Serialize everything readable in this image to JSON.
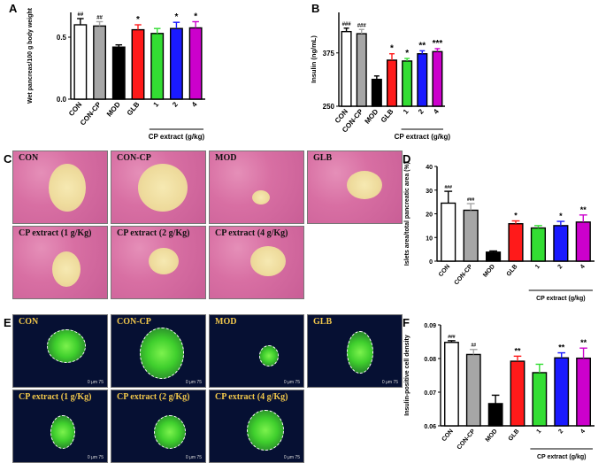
{
  "panels": [
    "A",
    "B",
    "C",
    "D",
    "E",
    "F"
  ],
  "chart_data": [
    {
      "id": "A",
      "type": "bar",
      "categories": [
        "CON",
        "CON-CP",
        "MOD",
        "GLB",
        "1",
        "2",
        "4"
      ],
      "values": [
        0.6,
        0.59,
        0.42,
        0.56,
        0.53,
        0.57,
        0.575
      ],
      "errors": [
        0.05,
        0.035,
        0.018,
        0.04,
        0.04,
        0.05,
        0.05
      ],
      "annotations": [
        "##",
        "##",
        "",
        "*",
        "",
        "*",
        "*"
      ],
      "colors": [
        "#ffffff",
        "#a6a6a6",
        "#000000",
        "#ff1a1a",
        "#33dd33",
        "#1a1aff",
        "#cc00cc"
      ],
      "ylabel": "Wet pancreas/100 g body weight",
      "ylim": [
        0.0,
        0.7
      ],
      "yticks": [
        "0.0",
        "0.5"
      ],
      "ytick_values": [
        0.0,
        0.5
      ],
      "group_label": "CP extract (g/kg)"
    },
    {
      "id": "B",
      "type": "bar",
      "categories": [
        "CON",
        "CON-CP",
        "MOD",
        "GLB",
        "1",
        "2",
        "4"
      ],
      "values": [
        425,
        420,
        313,
        358,
        356,
        373,
        378
      ],
      "errors": [
        8,
        10,
        8,
        15,
        6,
        7,
        7
      ],
      "annotations": [
        "###",
        "###",
        "",
        "*",
        "*",
        "**",
        "***"
      ],
      "colors": [
        "#ffffff",
        "#a6a6a6",
        "#000000",
        "#ff1a1a",
        "#33dd33",
        "#1a1aff",
        "#cc00cc"
      ],
      "ylabel": "Insulin (ng/mL)",
      "ylim": [
        250,
        470
      ],
      "yticks": [
        "250",
        "375"
      ],
      "ytick_values": [
        250,
        375
      ],
      "group_label": "CP extract (g/kg)"
    },
    {
      "id": "D",
      "type": "bar",
      "categories": [
        "CON",
        "CON-CP",
        "MOD",
        "GLB",
        "1",
        "2",
        "4"
      ],
      "values": [
        24.5,
        21.5,
        3.8,
        15.8,
        14.0,
        15.0,
        16.5
      ],
      "errors": [
        5.0,
        2.8,
        0.5,
        1.2,
        1.0,
        1.8,
        3.0
      ],
      "annotations": [
        "###",
        "###",
        "",
        "*",
        "",
        "*",
        "**"
      ],
      "colors": [
        "#ffffff",
        "#a6a6a6",
        "#000000",
        "#ff1a1a",
        "#33dd33",
        "#1a1aff",
        "#cc00cc"
      ],
      "ylabel": "Islets area/total pancreatic area (%)",
      "ylim": [
        0,
        40
      ],
      "yticks": [
        "0",
        "10",
        "20",
        "30",
        "40"
      ],
      "ytick_values": [
        0,
        10,
        20,
        30,
        40
      ],
      "group_label": "CP extract (g/kg)"
    },
    {
      "id": "F",
      "type": "bar",
      "categories": [
        "CON",
        "CON-CP",
        "MOD",
        "GLB",
        "1",
        "2",
        "4"
      ],
      "values": [
        0.0848,
        0.0812,
        0.0666,
        0.0792,
        0.0758,
        0.0802,
        0.0801
      ],
      "errors": [
        0.0005,
        0.0015,
        0.0025,
        0.0015,
        0.0025,
        0.0015,
        0.003
      ],
      "annotations": [
        "###",
        "##",
        "",
        "**",
        "",
        "**",
        "**"
      ],
      "colors": [
        "#ffffff",
        "#a6a6a6",
        "#000000",
        "#ff1a1a",
        "#33dd33",
        "#1a1aff",
        "#cc00cc"
      ],
      "ylabel": "Insulin-positive cell density",
      "ylim": [
        0.06,
        0.09
      ],
      "yticks": [
        "0.06",
        "0.07",
        "0.08",
        "0.09"
      ],
      "ytick_values": [
        0.06,
        0.07,
        0.08,
        0.09
      ],
      "group_label": "CP extract (g/kg)"
    }
  ],
  "he_images": [
    "CON",
    "CON-CP",
    "MOD",
    "GLB",
    "CP extract (1 g/Kg)",
    "CP extract (2 g/Kg)",
    "CP extract (4 g/Kg)"
  ],
  "if_images": [
    "CON",
    "CON-CP",
    "MOD",
    "GLB",
    "CP extract (1 g/Kg)",
    "CP extract (2 g/Kg)",
    "CP extract (4 g/Kg)"
  ],
  "scale_label": "0    μm    75"
}
